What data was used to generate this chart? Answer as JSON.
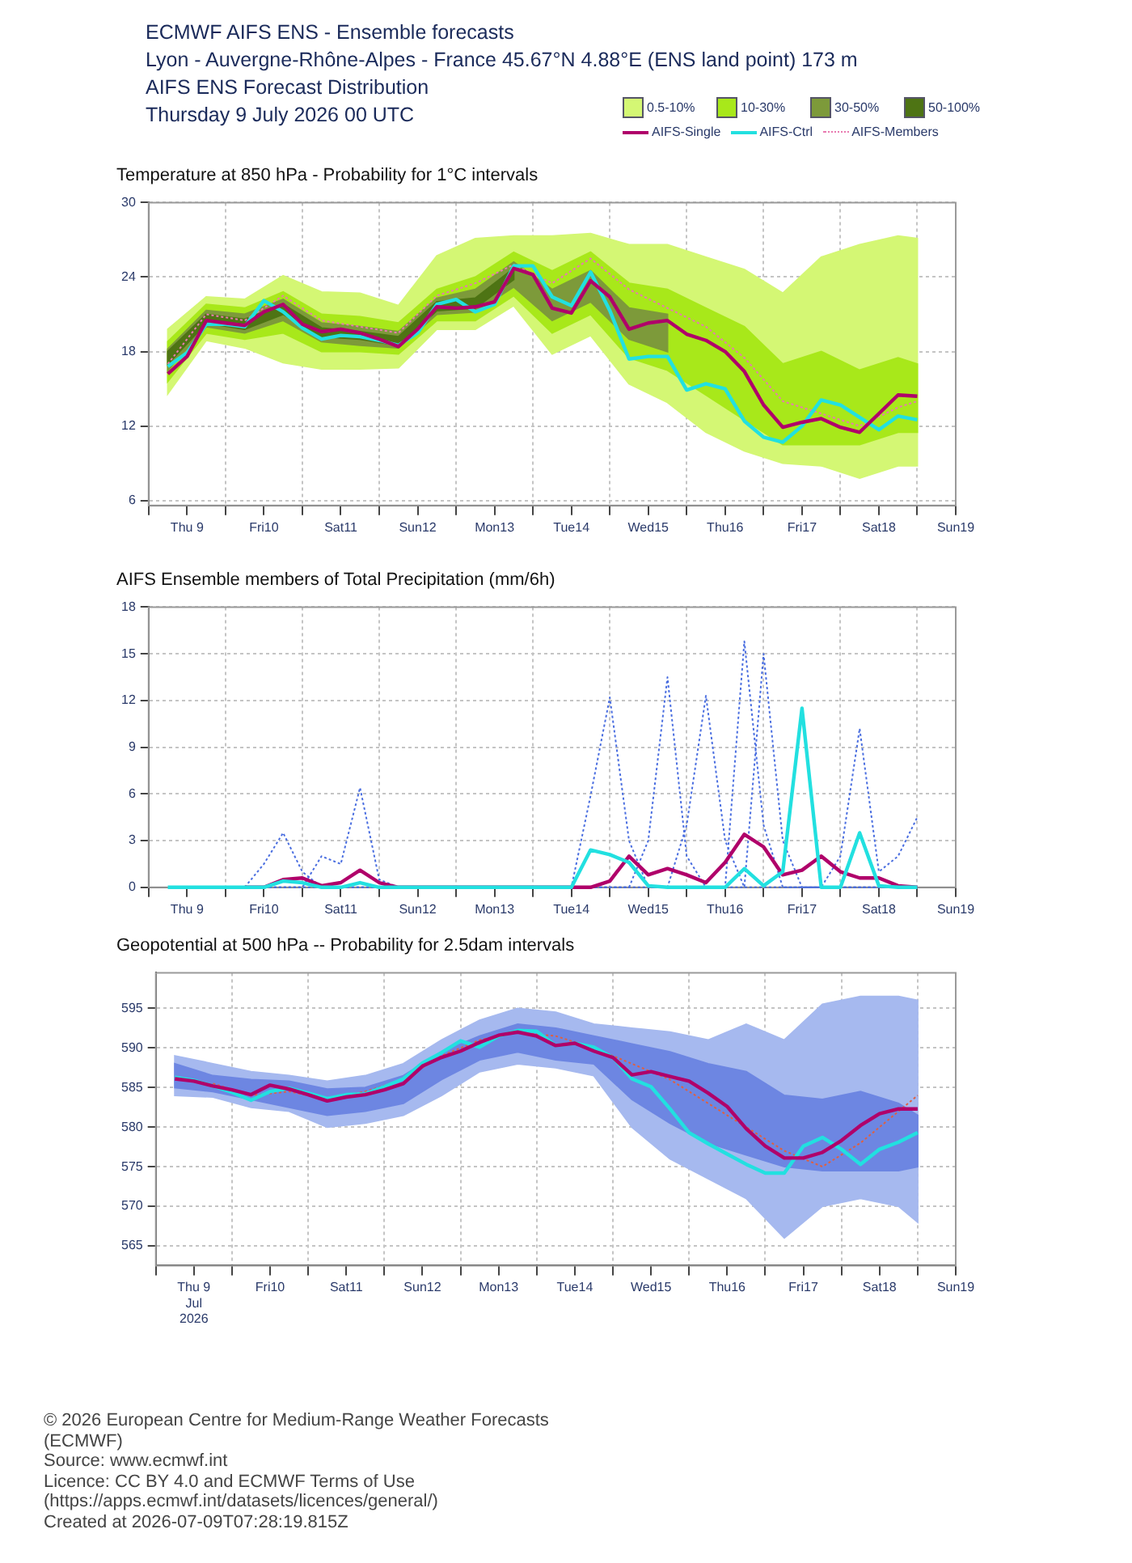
{
  "chart_data": [
    {
      "type": "line",
      "title": "Temperature at 850 hPa - Probability for 1°C intervals",
      "annotations": [
        "ECMWF AIFS ENS - Ensemble forecasts",
        "Lyon - Auvergne-Rhône-Alpes - France 45.67°N 4.88°E (ENS land point) 173 m",
        "AIFS ENS Forecast Distribution",
        "Thursday 9 July 2026 00 UTC"
      ],
      "x": [
        "2026-07-09T06:00",
        "2026-07-09T12:00",
        "2026-07-09T18:00",
        "2026-07-10T00:00",
        "2026-07-10T06:00",
        "2026-07-10T12:00",
        "2026-07-10T18:00",
        "2026-07-11T00:00",
        "2026-07-11T06:00",
        "2026-07-11T12:00",
        "2026-07-11T18:00",
        "2026-07-12T00:00",
        "2026-07-12T06:00",
        "2026-07-12T12:00",
        "2026-07-12T18:00",
        "2026-07-13T00:00",
        "2026-07-13T06:00",
        "2026-07-13T12:00",
        "2026-07-13T18:00",
        "2026-07-14T00:00",
        "2026-07-14T06:00",
        "2026-07-14T12:00",
        "2026-07-14T18:00",
        "2026-07-15T00:00",
        "2026-07-15T06:00",
        "2026-07-15T12:00",
        "2026-07-15T18:00",
        "2026-07-16T00:00",
        "2026-07-16T06:00",
        "2026-07-16T12:00",
        "2026-07-16T18:00",
        "2026-07-17T00:00",
        "2026-07-17T06:00",
        "2026-07-17T12:00",
        "2026-07-17T18:00",
        "2026-07-18T00:00",
        "2026-07-18T06:00",
        "2026-07-18T12:00",
        "2026-07-18T18:00",
        "2026-07-19T00:00"
      ],
      "series": [
        {
          "name": "0.5-10%",
          "type": "area",
          "color": "#d4f774",
          "x": [
            "2026-07-09T06:00",
            "2026-07-09T18:00",
            "2026-07-10T06:00",
            "2026-07-10T18:00",
            "2026-07-11T06:00",
            "2026-07-11T18:00",
            "2026-07-12T06:00",
            "2026-07-12T18:00",
            "2026-07-13T06:00",
            "2026-07-13T18:00",
            "2026-07-14T06:00",
            "2026-07-14T18:00",
            "2026-07-15T06:00",
            "2026-07-15T18:00",
            "2026-07-16T06:00",
            "2026-07-16T18:00",
            "2026-07-17T06:00",
            "2026-07-17T18:00",
            "2026-07-18T06:00",
            "2026-07-18T18:00",
            "2026-07-19T00:00"
          ],
          "values": [
            null,
            null,
            null,
            null,
            null,
            null,
            null,
            null,
            null,
            null,
            null,
            null,
            null,
            null,
            null,
            null,
            null,
            null,
            null,
            null,
            null
          ],
          "lower": [
            14.6,
            18.9,
            18.3,
            17.1,
            16.6,
            16.6,
            16.7,
            19.8,
            19.8,
            21.7,
            17.8,
            19.3,
            15.4,
            13.9,
            11.5,
            10.0,
            9.0,
            8.8,
            7.8,
            8.8,
            8.8
          ],
          "upper": [
            19.8,
            22.4,
            22.2,
            24.1,
            22.8,
            22.7,
            21.7,
            25.7,
            27.1,
            27.3,
            27.3,
            27.5,
            26.6,
            26.6,
            25.6,
            24.6,
            22.7,
            25.6,
            26.6,
            27.3,
            27.1
          ]
        },
        {
          "name": "10-30%",
          "type": "area",
          "color": "#a8e81a",
          "x": [
            "2026-07-09T06:00",
            "2026-07-09T18:00",
            "2026-07-10T06:00",
            "2026-07-10T18:00",
            "2026-07-11T06:00",
            "2026-07-11T18:00",
            "2026-07-12T06:00",
            "2026-07-12T18:00",
            "2026-07-13T06:00",
            "2026-07-13T18:00",
            "2026-07-14T06:00",
            "2026-07-14T18:00",
            "2026-07-15T06:00",
            "2026-07-15T18:00",
            "2026-07-16T06:00",
            "2026-07-16T18:00",
            "2026-07-17T06:00",
            "2026-07-17T18:00",
            "2026-07-18T06:00",
            "2026-07-18T18:00",
            "2026-07-19T00:00"
          ],
          "values": [
            null,
            null,
            null,
            null,
            null,
            null,
            null,
            null,
            null,
            null,
            null,
            null,
            null,
            null,
            null,
            null,
            null,
            null,
            null,
            null,
            null
          ],
          "lower": [
            15.6,
            19.5,
            19.0,
            19.5,
            18.0,
            18.0,
            17.8,
            20.5,
            20.5,
            22.5,
            19.5,
            21.0,
            17.5,
            16.5,
            14.5,
            12.5,
            10.5,
            10.5,
            10.5,
            11.5,
            11.5
          ],
          "upper": [
            18.8,
            21.8,
            21.5,
            22.8,
            21.0,
            20.8,
            20.3,
            23.0,
            24.0,
            26.0,
            24.5,
            26.0,
            23.5,
            23.0,
            21.5,
            20.0,
            17.0,
            18.0,
            16.5,
            17.5,
            17.0
          ]
        },
        {
          "name": "30-50%",
          "type": "area",
          "color": "#7d9a3a",
          "x": [
            "2026-07-09T06:00",
            "2026-07-09T18:00",
            "2026-07-10T06:00",
            "2026-07-10T18:00",
            "2026-07-11T06:00",
            "2026-07-11T18:00",
            "2026-07-12T06:00",
            "2026-07-12T18:00",
            "2026-07-13T06:00",
            "2026-07-13T18:00",
            "2026-07-14T06:00",
            "2026-07-14T18:00",
            "2026-07-15T06:00",
            "2026-07-15T18:00"
          ],
          "values": [
            null,
            null,
            null,
            null,
            null,
            null,
            null,
            null,
            null,
            null,
            null,
            null,
            null,
            null
          ],
          "lower": [
            16.5,
            20.0,
            19.5,
            20.5,
            18.8,
            18.5,
            18.3,
            21.0,
            21.2,
            23.2,
            20.5,
            22.0,
            19.0,
            18.0
          ],
          "upper": [
            18.2,
            21.3,
            21.0,
            22.2,
            20.3,
            20.0,
            19.6,
            22.3,
            23.0,
            25.2,
            23.0,
            24.5,
            21.5,
            21.0
          ]
        },
        {
          "name": "50-100%",
          "type": "area",
          "color": "#4e7414",
          "x": [
            "2026-07-09T06:00",
            "2026-07-09T18:00",
            "2026-07-10T06:00",
            "2026-07-10T18:00",
            "2026-07-11T06:00",
            "2026-07-11T18:00",
            "2026-07-12T06:00",
            "2026-07-12T18:00",
            "2026-07-13T06:00",
            "2026-07-13T18:00"
          ],
          "values": [
            null,
            null,
            null,
            null,
            null,
            null,
            null,
            null,
            null,
            null
          ],
          "lower": [
            17.0,
            20.3,
            19.8,
            21.0,
            19.2,
            19.0,
            18.5,
            21.3,
            21.5,
            23.8
          ],
          "upper": [
            18.0,
            21.0,
            20.6,
            21.8,
            19.9,
            19.6,
            19.2,
            22.0,
            22.3,
            24.7
          ]
        },
        {
          "name": "AIFS-Single",
          "color": "#b0006a",
          "values": [
            16.2,
            17.6,
            20.5,
            20.3,
            20.1,
            21.2,
            21.8,
            20.2,
            19.6,
            19.8,
            19.5,
            19.0,
            18.4,
            19.8,
            21.6,
            21.5,
            21.6,
            22.0,
            24.7,
            24.2,
            21.5,
            21.1,
            23.7,
            22.4,
            19.8,
            20.3,
            20.5,
            19.4,
            18.9,
            18.0,
            16.4,
            13.7,
            11.9,
            12.3,
            12.6,
            11.9,
            11.5,
            13.0,
            14.5,
            14.4
          ]
        },
        {
          "name": "AIFS-Ctrl",
          "color": "#22e0e0",
          "values": [
            16.8,
            17.9,
            20.2,
            20.2,
            20.0,
            22.1,
            21.2,
            19.9,
            19.0,
            19.3,
            19.2,
            18.9,
            18.5,
            19.5,
            21.8,
            22.2,
            21.2,
            21.8,
            24.9,
            24.9,
            22.4,
            21.7,
            24.4,
            21.3,
            17.4,
            17.6,
            17.6,
            14.9,
            15.4,
            15.0,
            12.4,
            11.1,
            10.7,
            12.0,
            14.1,
            13.7,
            12.7,
            11.7,
            12.8,
            12.5
          ]
        },
        {
          "name": "AIFS-Members",
          "color": "#e87ab0",
          "line_style": "dotted",
          "x": [
            "2026-07-09T06:00",
            "2026-07-09T18:00",
            "2026-07-10T06:00",
            "2026-07-10T18:00",
            "2026-07-11T06:00",
            "2026-07-11T18:00",
            "2026-07-12T06:00",
            "2026-07-12T18:00",
            "2026-07-13T06:00",
            "2026-07-13T18:00",
            "2026-07-14T06:00",
            "2026-07-14T18:00",
            "2026-07-15T06:00",
            "2026-07-15T18:00",
            "2026-07-16T06:00",
            "2026-07-16T18:00",
            "2026-07-17T06:00",
            "2026-07-17T18:00",
            "2026-07-18T06:00",
            "2026-07-18T18:00",
            "2026-07-19T00:00"
          ],
          "values": [
            17.0,
            21.0,
            20.5,
            22.5,
            20.5,
            20.0,
            19.5,
            22.5,
            23.5,
            25.0,
            23.5,
            25.5,
            23.0,
            21.5,
            20.0,
            17.5,
            14.0,
            13.0,
            12.0,
            13.5,
            14.0
          ]
        }
      ],
      "xlim": [
        "2026-07-09T00:00",
        "2026-07-19T12:00"
      ],
      "xticks": [
        {
          "value": "2026-07-09T00:00",
          "label": null
        },
        {
          "value": "2026-07-09T12:00",
          "label": "Thu 9"
        },
        {
          "value": "2026-07-10T00:00",
          "label": null
        },
        {
          "value": "2026-07-10T12:00",
          "label": "Fri10"
        },
        {
          "value": "2026-07-11T00:00",
          "label": null
        },
        {
          "value": "2026-07-11T12:00",
          "label": "Sat11"
        },
        {
          "value": "2026-07-12T00:00",
          "label": null
        },
        {
          "value": "2026-07-12T12:00",
          "label": "Sun12"
        },
        {
          "value": "2026-07-13T00:00",
          "label": null
        },
        {
          "value": "2026-07-13T12:00",
          "label": "Mon13"
        },
        {
          "value": "2026-07-14T00:00",
          "label": null
        },
        {
          "value": "2026-07-14T12:00",
          "label": "Tue14"
        },
        {
          "value": "2026-07-15T00:00",
          "label": null
        },
        {
          "value": "2026-07-15T12:00",
          "label": "Wed15"
        },
        {
          "value": "2026-07-16T00:00",
          "label": null
        },
        {
          "value": "2026-07-16T12:00",
          "label": "Thu16"
        },
        {
          "value": "2026-07-17T00:00",
          "label": null
        },
        {
          "value": "2026-07-17T12:00",
          "label": "Fri17"
        },
        {
          "value": "2026-07-18T00:00",
          "label": null
        },
        {
          "value": "2026-07-18T12:00",
          "label": "Sat18"
        },
        {
          "value": "2026-07-19T00:00",
          "label": null
        },
        {
          "value": "2026-07-19T12:00",
          "label": "Sun19"
        }
      ],
      "ylim": [
        5.6,
        30
      ],
      "yticks": [
        6,
        12,
        18,
        24,
        30
      ],
      "grid": true,
      "legend": "top right",
      "marker": "none"
    },
    {
      "type": "line",
      "title": "AIFS Ensemble members of Total Precipitation (mm/6h)",
      "x": [
        "2026-07-09T06:00",
        "2026-07-09T12:00",
        "2026-07-09T18:00",
        "2026-07-10T00:00",
        "2026-07-10T06:00",
        "2026-07-10T12:00",
        "2026-07-10T18:00",
        "2026-07-11T00:00",
        "2026-07-11T06:00",
        "2026-07-11T12:00",
        "2026-07-11T18:00",
        "2026-07-12T00:00",
        "2026-07-12T06:00",
        "2026-07-12T12:00",
        "2026-07-12T18:00",
        "2026-07-13T00:00",
        "2026-07-13T06:00",
        "2026-07-13T12:00",
        "2026-07-13T18:00",
        "2026-07-14T00:00",
        "2026-07-14T06:00",
        "2026-07-14T12:00",
        "2026-07-14T18:00",
        "2026-07-15T00:00",
        "2026-07-15T06:00",
        "2026-07-15T12:00",
        "2026-07-15T18:00",
        "2026-07-16T00:00",
        "2026-07-16T06:00",
        "2026-07-16T12:00",
        "2026-07-16T18:00",
        "2026-07-17T00:00",
        "2026-07-17T06:00",
        "2026-07-17T12:00",
        "2026-07-17T18:00",
        "2026-07-18T00:00",
        "2026-07-18T06:00",
        "2026-07-18T12:00",
        "2026-07-18T18:00",
        "2026-07-19T00:00"
      ],
      "series": [
        {
          "color": "#4a6ee0",
          "line_style": "dotted",
          "values": [
            null,
            null,
            null,
            0,
            0,
            1.5,
            3.5,
            1.0,
            0,
            0,
            0,
            0,
            0,
            0,
            0,
            0,
            0,
            0,
            0,
            0,
            0,
            0,
            5.9,
            12.2,
            3.0,
            0,
            0,
            0,
            0,
            0,
            15.8,
            4.0,
            0,
            0,
            0,
            0,
            0,
            0,
            0,
            0
          ]
        },
        {
          "color": "#4a6ee0",
          "line_style": "dotted",
          "values": [
            null,
            null,
            null,
            0,
            0,
            0,
            0,
            0,
            2.0,
            1.5,
            6.4,
            0.5,
            0,
            0,
            0,
            0,
            0,
            0,
            0,
            0,
            0,
            0,
            0,
            0,
            0,
            3.0,
            13.5,
            2.0,
            0,
            0,
            0,
            15.0,
            3.0,
            0,
            0,
            0,
            0,
            0,
            0,
            0
          ]
        },
        {
          "color": "#4a6ee0",
          "line_style": "dotted",
          "values": [
            null,
            null,
            null,
            0,
            0,
            0,
            0,
            0,
            0,
            0,
            0,
            0,
            0,
            0,
            0,
            0,
            0,
            0,
            0,
            0,
            0,
            0,
            0,
            0,
            0,
            0,
            0,
            4.0,
            12.3,
            3.0,
            0,
            0,
            0,
            0,
            0,
            2.0,
            10.2,
            1.0,
            2.0,
            4.5
          ]
        },
        {
          "color": "#22e0e0",
          "values": [
            0,
            0,
            0,
            0,
            0,
            0,
            0.4,
            0.3,
            0,
            0,
            0.3,
            0,
            0,
            0,
            0,
            0,
            0,
            0,
            0,
            0,
            0,
            0,
            2.4,
            2.1,
            1.6,
            0.1,
            0,
            0,
            0,
            0,
            1.2,
            0.1,
            1.0,
            11.5,
            0,
            0,
            3.5,
            0.1,
            0,
            0
          ]
        },
        {
          "color": "#b0006a",
          "values": [
            null,
            null,
            null,
            null,
            0,
            0,
            0.5,
            0.6,
            0.1,
            0.3,
            1.1,
            0.3,
            0,
            0,
            0,
            0,
            0,
            0,
            0,
            0,
            0,
            0,
            0,
            0.4,
            2.0,
            0.8,
            1.2,
            0.8,
            0.3,
            1.6,
            3.4,
            2.6,
            0.8,
            1.1,
            2.0,
            1.0,
            0.6,
            0.6,
            0.1,
            0
          ]
        }
      ],
      "xlim": [
        "2026-07-09T00:00",
        "2026-07-19T12:00"
      ],
      "xticks": [
        {
          "value": "2026-07-09T00:00",
          "label": null
        },
        {
          "value": "2026-07-09T12:00",
          "label": "Thu 9"
        },
        {
          "value": "2026-07-10T00:00",
          "label": null
        },
        {
          "value": "2026-07-10T12:00",
          "label": "Fri10"
        },
        {
          "value": "2026-07-11T00:00",
          "label": null
        },
        {
          "value": "2026-07-11T12:00",
          "label": "Sat11"
        },
        {
          "value": "2026-07-12T00:00",
          "label": null
        },
        {
          "value": "2026-07-12T12:00",
          "label": "Sun12"
        },
        {
          "value": "2026-07-13T00:00",
          "label": null
        },
        {
          "value": "2026-07-13T12:00",
          "label": "Mon13"
        },
        {
          "value": "2026-07-14T00:00",
          "label": null
        },
        {
          "value": "2026-07-14T12:00",
          "label": "Tue14"
        },
        {
          "value": "2026-07-15T00:00",
          "label": null
        },
        {
          "value": "2026-07-15T12:00",
          "label": "Wed15"
        },
        {
          "value": "2026-07-16T00:00",
          "label": null
        },
        {
          "value": "2026-07-16T12:00",
          "label": "Thu16"
        },
        {
          "value": "2026-07-17T00:00",
          "label": null
        },
        {
          "value": "2026-07-17T12:00",
          "label": "Fri17"
        },
        {
          "value": "2026-07-18T00:00",
          "label": null
        },
        {
          "value": "2026-07-18T12:00",
          "label": "Sat18"
        },
        {
          "value": "2026-07-19T00:00",
          "label": null
        },
        {
          "value": "2026-07-19T12:00",
          "label": "Sun19"
        }
      ],
      "ylim": [
        0,
        18
      ],
      "yticks": [
        0,
        3,
        6,
        9,
        12,
        15,
        18
      ],
      "grid": true,
      "marker": "none"
    },
    {
      "type": "line",
      "title": "Geopotential at 500 hPa -- Probability for 2.5dam intervals",
      "annotations": [
        "© 2026 European Centre for Medium-Range Weather Forecasts (ECMWF)",
        "Source: www.ecmwf.int",
        "Licence: CC BY 4.0 and ECMWF Terms of Use (https://apps.ecmwf.int/datasets/licences/general/)",
        "Created at 2026-07-09T07:28:19.815Z"
      ],
      "x": [
        "2026-07-09T06:00",
        "2026-07-09T12:00",
        "2026-07-09T18:00",
        "2026-07-10T00:00",
        "2026-07-10T06:00",
        "2026-07-10T12:00",
        "2026-07-10T18:00",
        "2026-07-11T00:00",
        "2026-07-11T06:00",
        "2026-07-11T12:00",
        "2026-07-11T18:00",
        "2026-07-12T00:00",
        "2026-07-12T06:00",
        "2026-07-12T12:00",
        "2026-07-12T18:00",
        "2026-07-13T00:00",
        "2026-07-13T06:00",
        "2026-07-13T12:00",
        "2026-07-13T18:00",
        "2026-07-14T00:00",
        "2026-07-14T06:00",
        "2026-07-14T12:00",
        "2026-07-14T18:00",
        "2026-07-15T00:00",
        "2026-07-15T06:00",
        "2026-07-15T12:00",
        "2026-07-15T18:00",
        "2026-07-16T00:00",
        "2026-07-16T06:00",
        "2026-07-16T12:00",
        "2026-07-16T18:00",
        "2026-07-17T00:00",
        "2026-07-17T06:00",
        "2026-07-17T12:00",
        "2026-07-17T18:00",
        "2026-07-18T00:00",
        "2026-07-18T06:00",
        "2026-07-18T12:00",
        "2026-07-18T18:00",
        "2026-07-19T00:00"
      ],
      "series": [
        {
          "type": "area",
          "color": "#a6b9ef",
          "x": [
            "2026-07-09T06:00",
            "2026-07-09T18:00",
            "2026-07-10T06:00",
            "2026-07-10T18:00",
            "2026-07-11T06:00",
            "2026-07-11T18:00",
            "2026-07-12T06:00",
            "2026-07-12T18:00",
            "2026-07-13T06:00",
            "2026-07-13T18:00",
            "2026-07-14T06:00",
            "2026-07-14T18:00",
            "2026-07-15T06:00",
            "2026-07-15T18:00",
            "2026-07-16T06:00",
            "2026-07-16T18:00",
            "2026-07-17T06:00",
            "2026-07-17T18:00",
            "2026-07-18T06:00",
            "2026-07-18T18:00",
            "2026-07-19T00:00"
          ],
          "values": [
            null,
            null,
            null,
            null,
            null,
            null,
            null,
            null,
            null,
            null,
            null,
            null,
            null,
            null,
            null,
            null,
            null,
            null,
            null,
            null,
            null
          ],
          "lower": [
            584.0,
            583.8,
            582.5,
            582.0,
            580.0,
            580.5,
            581.5,
            584.0,
            587.0,
            588.0,
            587.5,
            586.5,
            580.0,
            576.0,
            573.5,
            571.0,
            566.0,
            570.0,
            571.0,
            570.0,
            568.0
          ],
          "upper": [
            589.0,
            588.0,
            587.0,
            586.5,
            585.8,
            586.5,
            588.0,
            591.0,
            593.5,
            595.0,
            594.5,
            593.0,
            592.5,
            592.0,
            591.0,
            593.0,
            591.0,
            595.5,
            596.5,
            596.5,
            596.0
          ]
        },
        {
          "type": "area",
          "color": "#6d86e2",
          "x": [
            "2026-07-09T06:00",
            "2026-07-09T18:00",
            "2026-07-10T06:00",
            "2026-07-10T18:00",
            "2026-07-11T06:00",
            "2026-07-11T18:00",
            "2026-07-12T06:00",
            "2026-07-12T18:00",
            "2026-07-13T06:00",
            "2026-07-13T18:00",
            "2026-07-14T06:00",
            "2026-07-14T18:00",
            "2026-07-15T06:00",
            "2026-07-15T18:00",
            "2026-07-16T06:00",
            "2026-07-16T18:00",
            "2026-07-17T06:00",
            "2026-07-17T18:00",
            "2026-07-18T06:00",
            "2026-07-18T18:00",
            "2026-07-19T00:00"
          ],
          "values": [
            null,
            null,
            null,
            null,
            null,
            null,
            null,
            null,
            null,
            null,
            null,
            null,
            null,
            null,
            null,
            null,
            null,
            null,
            null,
            null,
            null
          ],
          "lower": [
            585.0,
            584.5,
            583.5,
            582.5,
            581.5,
            582.0,
            583.0,
            586.0,
            588.5,
            589.5,
            588.5,
            588.0,
            583.5,
            580.5,
            578.0,
            576.5,
            575.0,
            574.5,
            574.5,
            574.5,
            575.0
          ],
          "upper": [
            588.0,
            586.5,
            586.0,
            585.8,
            584.8,
            585.0,
            586.5,
            589.5,
            591.5,
            593.0,
            592.5,
            591.5,
            590.5,
            589.5,
            588.0,
            587.0,
            584.0,
            583.5,
            584.5,
            583.0,
            581.5
          ]
        },
        {
          "color": "#e06040",
          "line_style": "dotted",
          "x": [
            "2026-07-09T18:00",
            "2026-07-10T06:00",
            "2026-07-10T18:00",
            "2026-07-11T06:00",
            "2026-07-11T18:00",
            "2026-07-12T06:00",
            "2026-07-12T18:00",
            "2026-07-13T06:00",
            "2026-07-13T18:00",
            "2026-07-14T06:00",
            "2026-07-14T18:00",
            "2026-07-15T06:00",
            "2026-07-15T18:00",
            "2026-07-16T06:00",
            "2026-07-16T18:00",
            "2026-07-17T06:00",
            "2026-07-17T18:00",
            "2026-07-18T06:00",
            "2026-07-18T18:00",
            "2026-07-19T00:00"
          ],
          "values": [
            585.5,
            584.0,
            584.5,
            583.5,
            584.5,
            586.0,
            589.0,
            591.0,
            592.0,
            591.5,
            590.0,
            588.0,
            586.0,
            583.0,
            580.0,
            577.0,
            575.0,
            578.0,
            582.0,
            584.0
          ]
        },
        {
          "color": "#b0006a",
          "values": [
            586.1,
            585.8,
            585.2,
            584.7,
            584.1,
            585.3,
            584.8,
            584.1,
            583.3,
            583.8,
            584.1,
            584.7,
            585.5,
            587.7,
            588.8,
            589.6,
            590.7,
            591.6,
            592.0,
            591.5,
            590.3,
            590.6,
            589.6,
            588.8,
            586.6,
            587.0,
            586.4,
            585.8,
            584.3,
            582.6,
            579.8,
            577.6,
            576.1,
            576.1,
            576.8,
            578.3,
            580.2,
            581.7,
            582.3,
            582.3
          ]
        },
        {
          "color": "#22e0e0",
          "values": [
            586.3,
            585.9,
            585.2,
            584.4,
            583.4,
            584.5,
            584.9,
            584.3,
            583.6,
            584.1,
            584.2,
            585.1,
            586.1,
            588.1,
            589.4,
            590.9,
            590.1,
            591.5,
            592.2,
            592.1,
            590.3,
            590.6,
            590.1,
            588.8,
            586.1,
            585.1,
            582.3,
            579.3,
            577.9,
            576.6,
            575.3,
            574.2,
            574.2,
            577.6,
            578.7,
            577.2,
            575.3,
            577.2,
            578.1,
            579.3
          ]
        }
      ],
      "xlim": [
        "2026-07-09T00:00",
        "2026-07-19T12:00"
      ],
      "xticks": [
        {
          "value": "2026-07-09T00:00",
          "label": null
        },
        {
          "value": "2026-07-09T12:00",
          "label": "Thu 9\nJul\n2026"
        },
        {
          "value": "2026-07-10T00:00",
          "label": null
        },
        {
          "value": "2026-07-10T12:00",
          "label": "Fri10"
        },
        {
          "value": "2026-07-11T00:00",
          "label": null
        },
        {
          "value": "2026-07-11T12:00",
          "label": "Sat11"
        },
        {
          "value": "2026-07-12T00:00",
          "label": null
        },
        {
          "value": "2026-07-12T12:00",
          "label": "Sun12"
        },
        {
          "value": "2026-07-13T00:00",
          "label": null
        },
        {
          "value": "2026-07-13T12:00",
          "label": "Mon13"
        },
        {
          "value": "2026-07-14T00:00",
          "label": null
        },
        {
          "value": "2026-07-14T12:00",
          "label": "Tue14"
        },
        {
          "value": "2026-07-15T00:00",
          "label": null
        },
        {
          "value": "2026-07-15T12:00",
          "label": "Wed15"
        },
        {
          "value": "2026-07-16T00:00",
          "label": null
        },
        {
          "value": "2026-07-16T12:00",
          "label": "Thu16"
        },
        {
          "value": "2026-07-17T00:00",
          "label": null
        },
        {
          "value": "2026-07-17T12:00",
          "label": "Fri17"
        },
        {
          "value": "2026-07-18T00:00",
          "label": null
        },
        {
          "value": "2026-07-18T12:00",
          "label": "Sat18"
        },
        {
          "value": "2026-07-19T00:00",
          "label": null
        },
        {
          "value": "2026-07-19T12:00",
          "label": "Sun19"
        }
      ],
      "ylim": [
        562.5,
        599.5
      ],
      "yticks": [
        565,
        570,
        575,
        580,
        585,
        590,
        595
      ],
      "grid": true,
      "marker": "none"
    }
  ]
}
